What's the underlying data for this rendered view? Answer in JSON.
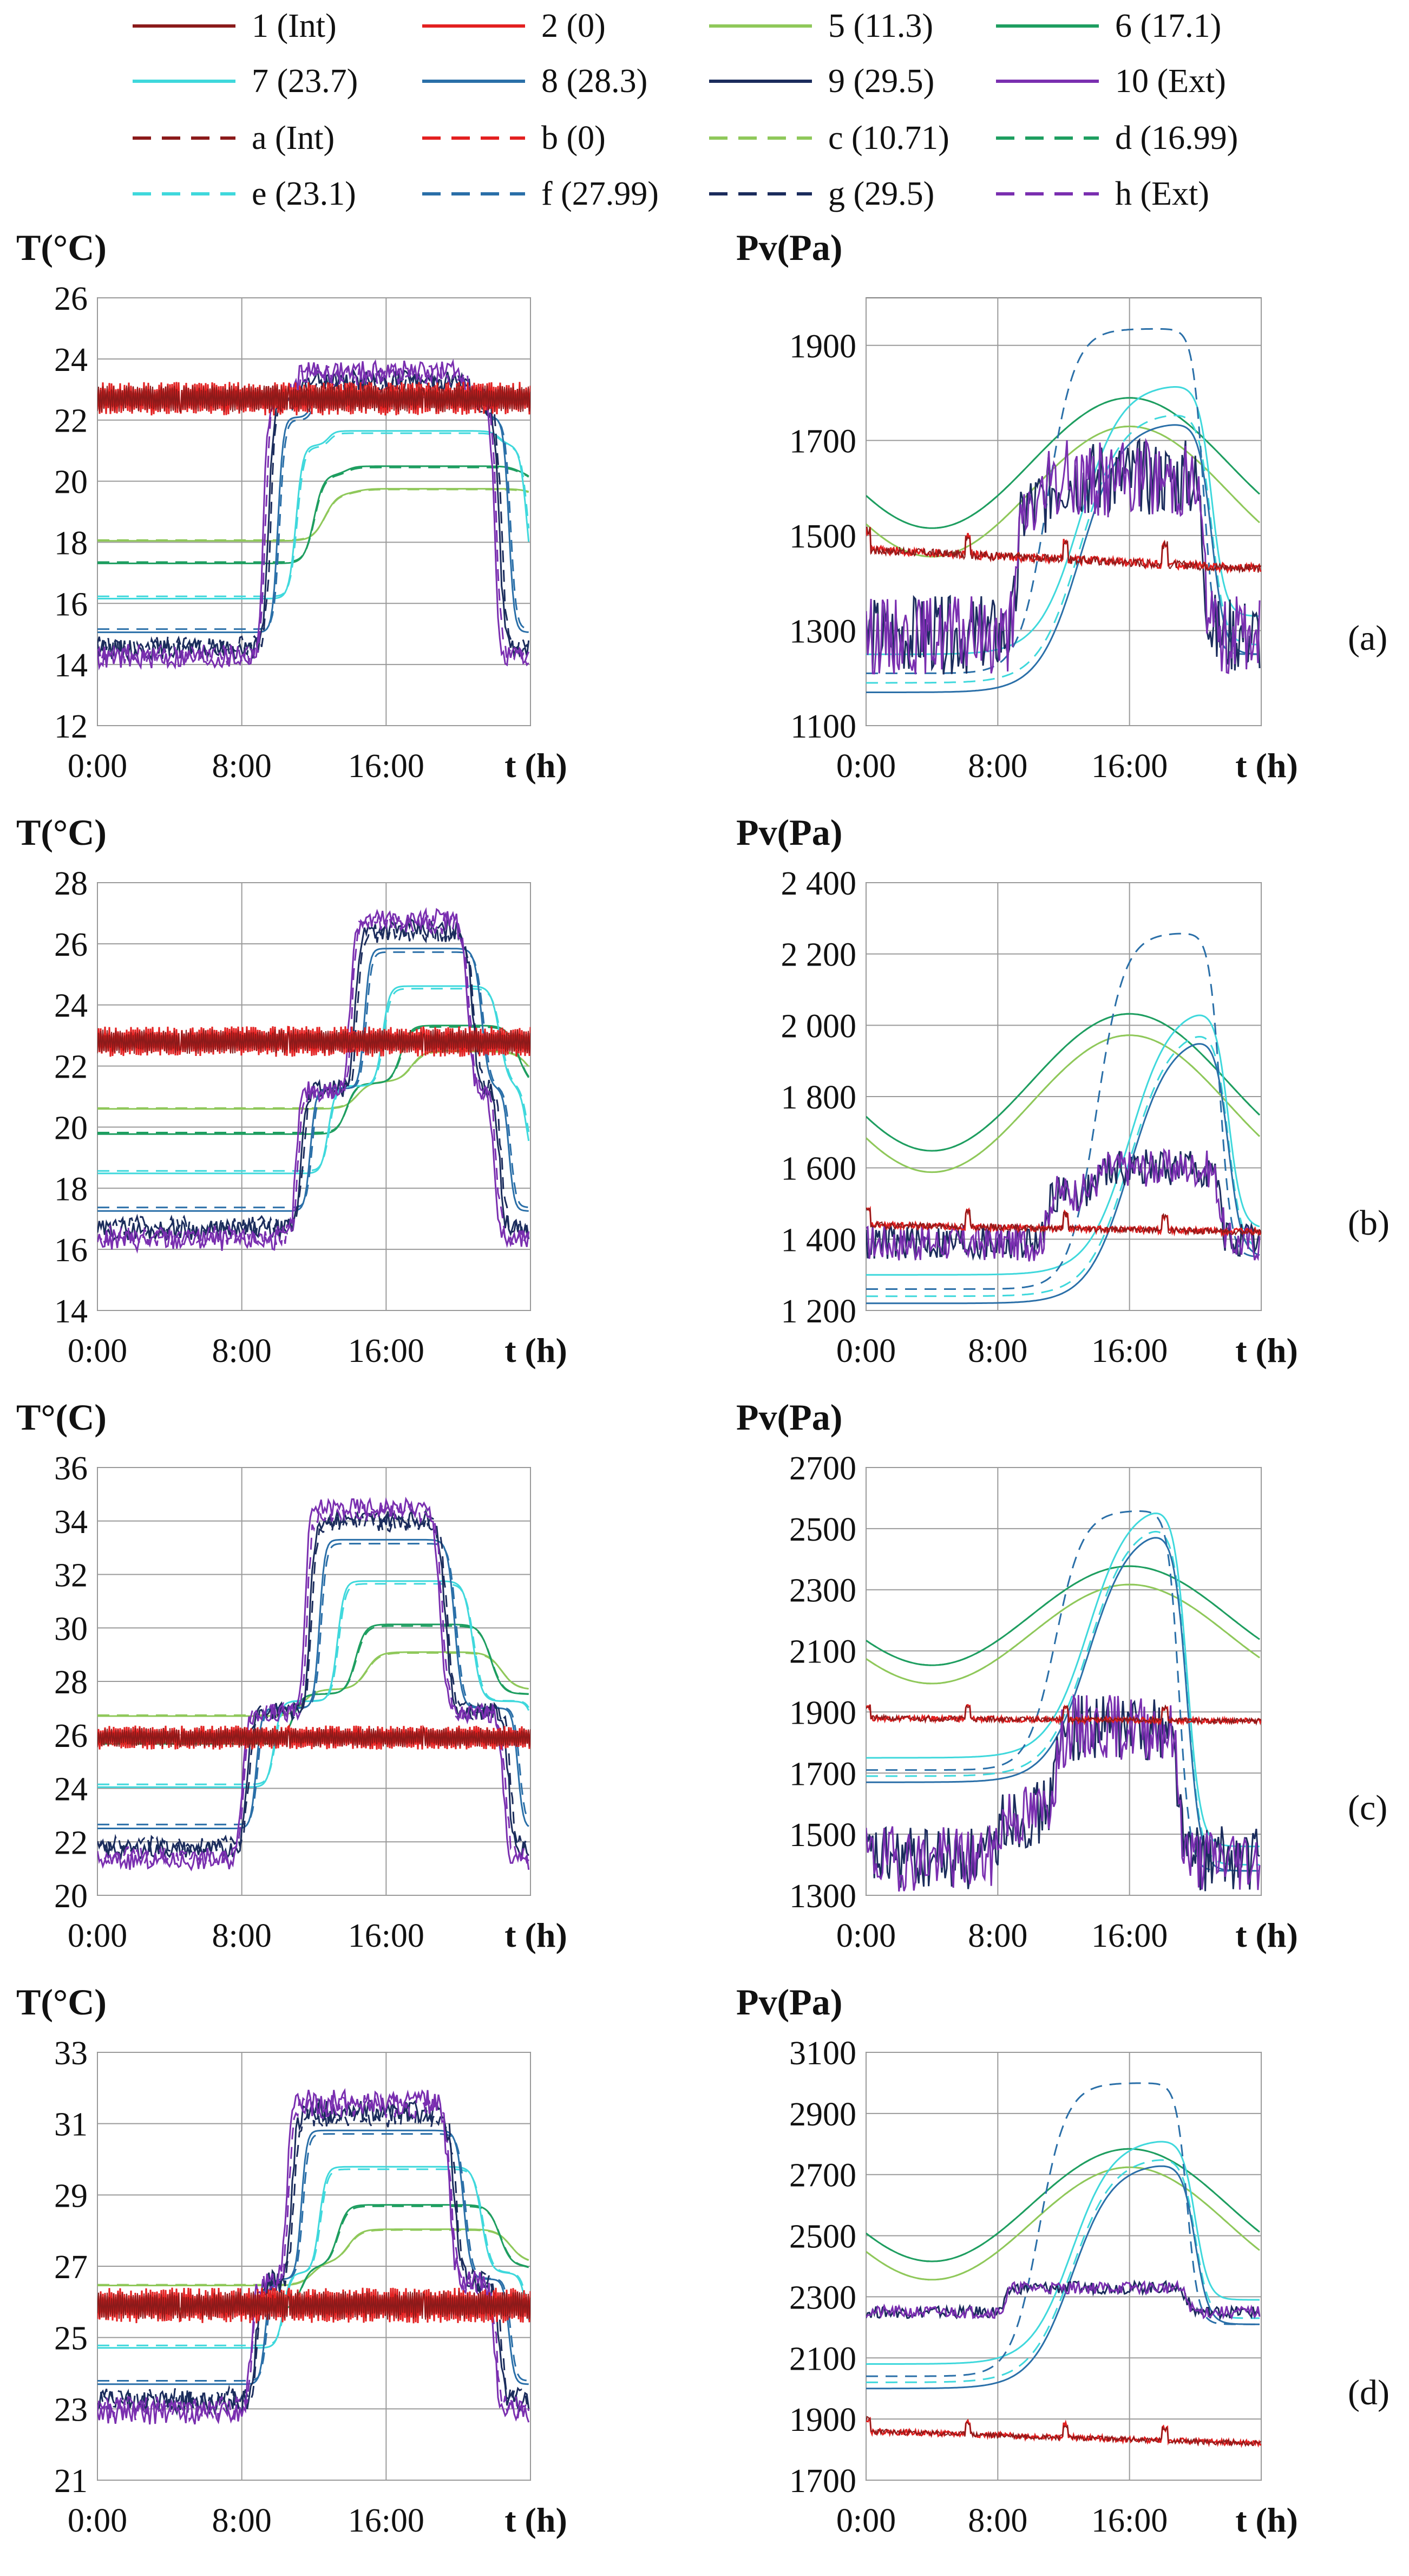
{
  "legend": {
    "solid": [
      {
        "label": "1 (Int)",
        "color": "#8b1a1a"
      },
      {
        "label": "2 (0)",
        "color": "#e32020"
      },
      {
        "label": "5 (11.3)",
        "color": "#8fc85a"
      },
      {
        "label": "6 (17.1)",
        "color": "#1e9e60"
      },
      {
        "label": "7 (23.7)",
        "color": "#3fd8dc"
      },
      {
        "label": "8 (28.3)",
        "color": "#2a6fa8"
      },
      {
        "label": "9 (29.5)",
        "color": "#1b2c5c"
      },
      {
        "label": "10 (Ext)",
        "color": "#7a2fb0"
      }
    ],
    "dashed": [
      {
        "label": "a (Int)",
        "color": "#8b1a1a"
      },
      {
        "label": "b (0)",
        "color": "#e32020"
      },
      {
        "label": "c (10.71)",
        "color": "#8fc85a"
      },
      {
        "label": "d (16.99)",
        "color": "#1e9e60"
      },
      {
        "label": "e (23.1)",
        "color": "#3fd8dc"
      },
      {
        "label": "f (27.99)",
        "color": "#2a6fa8"
      },
      {
        "label": "g (29.5)",
        "color": "#1b2c5c"
      },
      {
        "label": "h (Ext)",
        "color": "#7a2fb0"
      }
    ]
  },
  "chart_data": [
    {
      "panel": "a",
      "panel_label": "(a)",
      "kind": "temperature",
      "type": "line",
      "ylabel": "T(°C)",
      "xlabel": "t (h)",
      "yticks": [
        12,
        14,
        16,
        18,
        20,
        22,
        24,
        26
      ],
      "ytick_labels": [
        "12",
        "14",
        "16",
        "18",
        "20",
        "22",
        "24",
        "26"
      ],
      "ylim": [
        12,
        26
      ],
      "xticks": [
        "0:00",
        "8:00",
        "16:00"
      ],
      "xlim": [
        0,
        24
      ],
      "params": {
        "night": 14.2,
        "mid": 22.8,
        "peak": 23.6,
        "tOn": 9.2,
        "tStep": 11.0,
        "tOff": 20.5,
        "int": 22.7,
        "intAmp": 0.55
      }
    },
    {
      "panel": "a",
      "panel_label": "(a)",
      "kind": "vapour",
      "type": "line",
      "ylabel": "Pv(Pa)",
      "xlabel": "t (h)",
      "yticks": [
        1100,
        1300,
        1500,
        1700,
        1900
      ],
      "ytick_labels": [
        "1100",
        "1300",
        "1500",
        "1700",
        "1900"
      ],
      "ylim": [
        1100,
        2000
      ],
      "xticks": [
        "0:00",
        "8:00",
        "16:00"
      ],
      "xlim": [
        0,
        24
      ],
      "params": {
        "night": 1290,
        "mid": 1560,
        "peak": 1620,
        "tOn": 9.2,
        "tStep": 11.0,
        "tOff": 20.5,
        "int": 1470,
        "intEnd": 1430,
        "fPeak": 1935,
        "sPeak": 1820,
        "sMin": 1250
      }
    },
    {
      "panel": "b",
      "panel_label": "(b)",
      "kind": "temperature",
      "type": "line",
      "ylabel": "T(°C)",
      "xlabel": "t (h)",
      "yticks": [
        14,
        16,
        18,
        20,
        22,
        24,
        26,
        28
      ],
      "ytick_labels": [
        "14",
        "16",
        "18",
        "20",
        "22",
        "24",
        "26",
        "28"
      ],
      "ylim": [
        14,
        28
      ],
      "xticks": [
        "0:00",
        "8:00",
        "16:00"
      ],
      "xlim": [
        0,
        24
      ],
      "params": {
        "night": 16.3,
        "mid": 21.2,
        "peak": 26.8,
        "tOn": 11.0,
        "tStep": 14.0,
        "tOff": 20.5,
        "int": 22.8,
        "intAmp": 0.5
      }
    },
    {
      "panel": "b",
      "panel_label": "(b)",
      "kind": "vapour",
      "type": "line",
      "ylabel": "Pv(Pa)",
      "xlabel": "t (h)",
      "yticks": [
        1200,
        1400,
        1600,
        1800,
        2000,
        2200,
        2400
      ],
      "ytick_labels": [
        "1 200",
        "1 400",
        "1 600",
        "1 800",
        "2 000",
        "2 200",
        "2 400"
      ],
      "ylim": [
        1200,
        2400
      ],
      "xticks": [
        "0:00",
        "8:00",
        "16:00"
      ],
      "xlim": [
        0,
        24
      ],
      "params": {
        "night": 1390,
        "mid": 1530,
        "peak": 1600,
        "tOn": 11.0,
        "tStep": 14.0,
        "tOff": 21.5,
        "int": 1440,
        "intEnd": 1420,
        "fPeak": 2260,
        "sPeak": 2060,
        "sMin": 1300
      }
    },
    {
      "panel": "c",
      "panel_label": "(c)",
      "kind": "temperature",
      "type": "line",
      "ylabel": "T°(C)",
      "xlabel": "t (h)",
      "yticks": [
        20,
        22,
        24,
        26,
        28,
        30,
        32,
        34,
        36
      ],
      "ytick_labels": [
        "20",
        "22",
        "24",
        "26",
        "28",
        "30",
        "32",
        "34",
        "36"
      ],
      "ylim": [
        20,
        36
      ],
      "xticks": [
        "0:00",
        "8:00",
        "16:00"
      ],
      "xlim": [
        0,
        24
      ],
      "params": {
        "night": 21.3,
        "mid": 26.8,
        "peak": 34.5,
        "tOn": 8.0,
        "tStep": 11.5,
        "tOff": 19.0,
        "tOff2": 22.5,
        "int": 25.9,
        "intAmp": 0.45
      }
    },
    {
      "panel": "c",
      "panel_label": "(c)",
      "kind": "vapour",
      "type": "line",
      "ylabel": "Pv(Pa)",
      "xlabel": "t (h)",
      "yticks": [
        1300,
        1500,
        1700,
        1900,
        2100,
        2300,
        2500,
        2700
      ],
      "ytick_labels": [
        "1300",
        "1500",
        "1700",
        "1900",
        "2100",
        "2300",
        "2500",
        "2700"
      ],
      "ylim": [
        1300,
        2700
      ],
      "xticks": [
        "0:00",
        "8:00",
        "16:00"
      ],
      "xlim": [
        0,
        24
      ],
      "params": {
        "night": 1420,
        "mid": 1560,
        "peak": 1850,
        "tOn": 8.0,
        "tStep": 11.5,
        "tOff": 19.0,
        "int": 1880,
        "intEnd": 1870,
        "fPeak": 2560,
        "sPeak": 2590,
        "sMin": 1750
      }
    },
    {
      "panel": "d",
      "panel_label": "(d)",
      "kind": "temperature",
      "type": "line",
      "ylabel": "T(°C)",
      "xlabel": "t (h)",
      "yticks": [
        21,
        23,
        25,
        27,
        29,
        31,
        33
      ],
      "ytick_labels": [
        "21",
        "23",
        "25",
        "27",
        "29",
        "31",
        "33"
      ],
      "ylim": [
        21,
        33
      ],
      "xticks": [
        "0:00",
        "8:00",
        "16:00"
      ],
      "xlim": [
        0,
        24
      ],
      "params": {
        "night": 22.9,
        "mid": 26.5,
        "peak": 31.6,
        "tOn": 8.5,
        "tStep": 10.5,
        "tOff": 19.5,
        "tOff2": 22.0,
        "int": 25.9,
        "intAmp": 0.5
      }
    },
    {
      "panel": "d",
      "panel_label": "(d)",
      "kind": "vapour",
      "type": "line",
      "ylabel": "Pv(Pa)",
      "xlabel": "t (h)",
      "yticks": [
        1700,
        1900,
        2100,
        2300,
        2500,
        2700,
        2900,
        3100
      ],
      "ytick_labels": [
        "1700",
        "1900",
        "2100",
        "2300",
        "2500",
        "2700",
        "2900",
        "3100"
      ],
      "ylim": [
        1700,
        3100
      ],
      "xticks": [
        "0:00",
        "8:00",
        "16:00"
      ],
      "xlim": [
        0,
        24
      ],
      "params": {
        "night": 2250,
        "mid": 2330,
        "peak": 2330,
        "tOn": 8.5,
        "tStep": 10.5,
        "tOff": 19.5,
        "int": 1860,
        "intEnd": 1820,
        "fPeak": 3000,
        "sPeak": 2820,
        "sMin": 2080
      }
    }
  ]
}
